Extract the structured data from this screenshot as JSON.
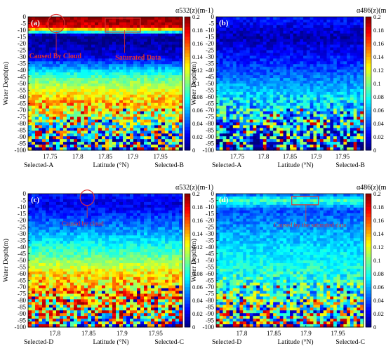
{
  "figure": {
    "colormap": [
      "#00007f",
      "#0000ff",
      "#007fff",
      "#00ffff",
      "#7fff7f",
      "#ffff00",
      "#ff7f00",
      "#ff0000",
      "#7f0000"
    ]
  },
  "chart_data": [
    {
      "panel": "(a)",
      "type": "heatmap",
      "colorbar_title": "α532(z)(m-1)",
      "colorbar_ticks": [
        "0.2",
        "0.18",
        "0.16",
        "0.14",
        "0.12",
        "0.1",
        "0.08",
        "0.06",
        "0.04",
        "0.02",
        "0"
      ],
      "clim": [
        0,
        0.2
      ],
      "ylabel": "Water Depth(m)",
      "xlabel": "Latitude (°N)",
      "yticks": [
        "0",
        "-5",
        "-10",
        "-15",
        "-20",
        "-25",
        "-30",
        "-35",
        "-40",
        "-45",
        "-50",
        "-55",
        "-60",
        "-65",
        "-70",
        "-75",
        "-80",
        "-85",
        "-90",
        "-95",
        "-100"
      ],
      "ylim": [
        -100,
        0
      ],
      "xticks": [
        "17.75",
        "17.8",
        "17.85",
        "17.9",
        "17.95"
      ],
      "xlim": [
        17.71,
        17.99
      ],
      "x_end_labels": [
        "Selected-A",
        "Selected-B"
      ],
      "annotations": [
        "Caused By Cloud",
        "Saturated Data"
      ],
      "profile": [
        {
          "depth": 0,
          "alpha": 0.2
        },
        {
          "depth": -8,
          "alpha": 0.18
        },
        {
          "depth": -14,
          "alpha": 0.0
        },
        {
          "depth": -30,
          "alpha": 0.02
        },
        {
          "depth": -45,
          "alpha": 0.09
        },
        {
          "depth": -55,
          "alpha": 0.12
        },
        {
          "depth": -65,
          "alpha": 0.14
        },
        {
          "depth": -80,
          "alpha": 0.1
        },
        {
          "depth": -100,
          "alpha": 0.06
        }
      ]
    },
    {
      "panel": "(b)",
      "type": "heatmap",
      "colorbar_title": "α486(z)(m-1)",
      "colorbar_ticks": [
        "0.2",
        "0.18",
        "0.16",
        "0.14",
        "0.12",
        "0.1",
        "0.08",
        "0.06",
        "0.04",
        "0.02",
        "0"
      ],
      "clim": [
        0,
        0.2
      ],
      "ylabel": "Water Depth(m)",
      "xlabel": "Latitude (°N)",
      "yticks": [
        "0",
        "-5",
        "-10",
        "-15",
        "-20",
        "-25",
        "-30",
        "-35",
        "-40",
        "-45",
        "-50",
        "-55",
        "-60",
        "-65",
        "-70",
        "-75",
        "-80",
        "-85",
        "-90",
        "-95",
        "-100"
      ],
      "ylim": [
        -100,
        0
      ],
      "xticks": [
        "17.75",
        "17.8",
        "17.85",
        "17.9",
        "17.95"
      ],
      "xlim": [
        17.71,
        17.99
      ],
      "x_end_labels": [
        "Selected-A",
        "Selected-B"
      ],
      "annotations": [],
      "profile": [
        {
          "depth": 0,
          "alpha": 0.03
        },
        {
          "depth": -15,
          "alpha": 0.01
        },
        {
          "depth": -40,
          "alpha": 0.04
        },
        {
          "depth": -60,
          "alpha": 0.07
        },
        {
          "depth": -80,
          "alpha": 0.07
        },
        {
          "depth": -100,
          "alpha": 0.03
        }
      ]
    },
    {
      "panel": "(c)",
      "type": "heatmap",
      "colorbar_title": "α532(z)(m-1)",
      "colorbar_ticks": [
        "0.2",
        "0.18",
        "0.16",
        "0.14",
        "0.12",
        "0.1",
        "0.08",
        "0.06",
        "0.04",
        "0.02",
        "0"
      ],
      "clim": [
        0,
        0.2
      ],
      "ylabel": "Water Depth(m)",
      "xlabel": "Latitude (°N)",
      "yticks": [
        "0",
        "-5",
        "-10",
        "-15",
        "-20",
        "-25",
        "-30",
        "-35",
        "-40",
        "-45",
        "-50",
        "-55",
        "-60",
        "-65",
        "-70",
        "-75",
        "-80",
        "-85",
        "-90",
        "-95",
        "-100"
      ],
      "ylim": [
        -100,
        0
      ],
      "xticks": [
        "17.8",
        "17.85",
        "17.9",
        "17.95"
      ],
      "xlim": [
        17.76,
        17.99
      ],
      "x_end_labels": [
        "Selected-D",
        "Selected-C"
      ],
      "annotations": [
        "Caused by cloud"
      ],
      "profile": [
        {
          "depth": 0,
          "alpha": 0.03
        },
        {
          "depth": -8,
          "alpha": 0.02
        },
        {
          "depth": -25,
          "alpha": 0.05
        },
        {
          "depth": -45,
          "alpha": 0.09
        },
        {
          "depth": -60,
          "alpha": 0.13
        },
        {
          "depth": -75,
          "alpha": 0.14
        },
        {
          "depth": -100,
          "alpha": 0.1
        }
      ]
    },
    {
      "panel": "(d)",
      "type": "heatmap",
      "colorbar_title": "α486(z)(m-1)",
      "colorbar_ticks": [
        "0.2",
        "0.18",
        "0.16",
        "0.14",
        "0.12",
        "0.1",
        "0.08",
        "0.06",
        "0.04",
        "0.02",
        "0"
      ],
      "clim": [
        0,
        0.2
      ],
      "ylabel": "Water Depth(m)",
      "xlabel": "Latitude (°N)",
      "yticks": [
        "0",
        "-5",
        "-10",
        "-15",
        "-20",
        "-25",
        "-30",
        "-35",
        "-40",
        "-45",
        "-50",
        "-55",
        "-60",
        "-65",
        "-70",
        "-75",
        "-80",
        "-85",
        "-90",
        "-95",
        "-100"
      ],
      "ylim": [
        -100,
        0
      ],
      "xticks": [
        "17.8",
        "17.85",
        "17.9",
        "17.95"
      ],
      "xlim": [
        17.76,
        17.99
      ],
      "x_end_labels": [
        "Selected-D",
        "Selected-C"
      ],
      "annotations": [
        "Caused by the saturated data"
      ],
      "profile": [
        {
          "depth": 0,
          "alpha": 0.04
        },
        {
          "depth": -5,
          "alpha": 0.09
        },
        {
          "depth": -12,
          "alpha": 0.04
        },
        {
          "depth": -30,
          "alpha": 0.06
        },
        {
          "depth": -55,
          "alpha": 0.08
        },
        {
          "depth": -80,
          "alpha": 0.09
        },
        {
          "depth": -100,
          "alpha": 0.1
        }
      ]
    }
  ]
}
